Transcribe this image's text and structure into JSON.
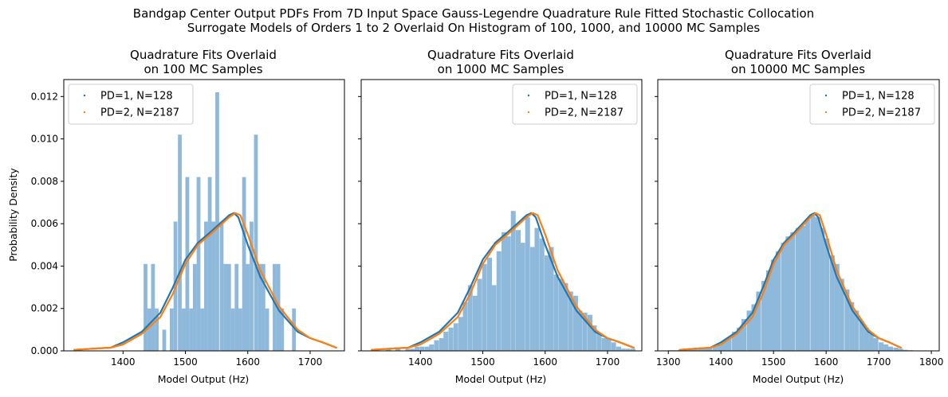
{
  "figure": {
    "suptitle_line1": "Bandgap Center Output PDFs From 7D Input Space Gauss-Legendre Quadrature Rule Fitted Stochastic Collocation",
    "suptitle_line2": "Surrogate Models of Orders 1 to 2 Overlaid On Histogram of 100, 1000, and 10000 MC Samples"
  },
  "chart_data": [
    {
      "type": "histogram+line",
      "title_line1": "Quadrature Fits Overlaid",
      "title_line2": "on 100 MC Samples",
      "xlabel": "Model Output (Hz)",
      "ylabel": "Probability Density",
      "xlim": [
        1305,
        1755
      ],
      "ylim": [
        0,
        0.0128
      ],
      "xticks": [
        1400,
        1500,
        1600,
        1700
      ],
      "yticks": [
        0.0,
        0.002,
        0.004,
        0.006,
        0.008,
        0.01,
        0.012
      ],
      "ytick_labels": [
        "0.000",
        "0.002",
        "0.004",
        "0.006",
        "0.008",
        "0.010",
        "0.012"
      ],
      "show_yticklabels": true,
      "legend_position": "upper-left",
      "histogram": {
        "color": "#8fb9db",
        "bin_width": 6.1,
        "bins": [
          [
            1433,
            0.0041
          ],
          [
            1439,
            0.002
          ],
          [
            1445,
            0.0041
          ],
          [
            1451,
            0.002
          ],
          [
            1463,
            0.001
          ],
          [
            1475,
            0.002
          ],
          [
            1481,
            0.0061
          ],
          [
            1488,
            0.0102
          ],
          [
            1494,
            0.002
          ],
          [
            1500,
            0.0082
          ],
          [
            1506,
            0.002
          ],
          [
            1512,
            0.0041
          ],
          [
            1518,
            0.0082
          ],
          [
            1524,
            0.002
          ],
          [
            1530,
            0.0061
          ],
          [
            1536,
            0.0082
          ],
          [
            1542,
            0.0061
          ],
          [
            1548,
            0.0122
          ],
          [
            1555,
            0.0061
          ],
          [
            1561,
            0.0041
          ],
          [
            1567,
            0.0041
          ],
          [
            1573,
            0.002
          ],
          [
            1579,
            0.0041
          ],
          [
            1585,
            0.002
          ],
          [
            1591,
            0.0082
          ],
          [
            1597,
            0.0041
          ],
          [
            1603,
            0.0061
          ],
          [
            1610,
            0.0102
          ],
          [
            1616,
            0.0041
          ],
          [
            1622,
            0.0041
          ],
          [
            1628,
            0.002
          ],
          [
            1640,
            0.0041
          ],
          [
            1646,
            0.0041
          ],
          [
            1652,
            0.002
          ],
          [
            1671,
            0.002
          ]
        ]
      },
      "series": [
        {
          "name": "PD=1, N=128",
          "color": "#1f77b4",
          "x": [
            1322,
            1350,
            1380,
            1400,
            1430,
            1460,
            1480,
            1500,
            1520,
            1540,
            1555,
            1570,
            1578,
            1585,
            1600,
            1620,
            1650,
            1680,
            1700,
            1720,
            1742
          ],
          "y": [
            5e-05,
            0.0001,
            0.00015,
            0.0004,
            0.0009,
            0.0018,
            0.003,
            0.0043,
            0.0051,
            0.0056,
            0.006,
            0.0064,
            0.0065,
            0.0063,
            0.005,
            0.0035,
            0.0019,
            0.0009,
            0.0006,
            0.0004,
            0.00015
          ]
        },
        {
          "name": "PD=2, N=2187",
          "color": "#ff7f0e",
          "x": [
            1322,
            1350,
            1380,
            1400,
            1430,
            1460,
            1480,
            1500,
            1520,
            1540,
            1555,
            1570,
            1580,
            1588,
            1600,
            1620,
            1650,
            1680,
            1700,
            1720,
            1742
          ],
          "y": [
            5e-05,
            0.0001,
            0.00015,
            0.0003,
            0.0008,
            0.0016,
            0.0027,
            0.0041,
            0.005,
            0.0055,
            0.0059,
            0.0063,
            0.0065,
            0.0064,
            0.0055,
            0.0038,
            0.0021,
            0.001,
            0.0006,
            0.0004,
            0.00015
          ]
        }
      ]
    },
    {
      "type": "histogram+line",
      "title_line1": "Quadrature Fits Overlaid",
      "title_line2": "on 1000 MC Samples",
      "xlabel": "Model Output (Hz)",
      "xlim": [
        1305,
        1755
      ],
      "ylim": [
        0,
        0.0128
      ],
      "xticks": [
        1400,
        1500,
        1600,
        1700
      ],
      "yticks": [
        0.0,
        0.002,
        0.004,
        0.006,
        0.008,
        0.01,
        0.012
      ],
      "show_yticklabels": false,
      "legend_position": "upper-right",
      "histogram": {
        "color": "#8fb9db",
        "bin_width": 7.7,
        "bins": [
          [
            1345,
            0.0001
          ],
          [
            1360,
            0.0001
          ],
          [
            1376,
            0.0001
          ],
          [
            1384,
            0.0001
          ],
          [
            1391,
            0.0002
          ],
          [
            1399,
            0.0002
          ],
          [
            1407,
            0.0002
          ],
          [
            1414,
            0.0003
          ],
          [
            1422,
            0.0005
          ],
          [
            1430,
            0.0006
          ],
          [
            1437,
            0.0009
          ],
          [
            1445,
            0.0011
          ],
          [
            1453,
            0.0013
          ],
          [
            1461,
            0.0016
          ],
          [
            1468,
            0.0023
          ],
          [
            1476,
            0.0031
          ],
          [
            1484,
            0.0026
          ],
          [
            1491,
            0.0034
          ],
          [
            1499,
            0.0041
          ],
          [
            1507,
            0.0044
          ],
          [
            1514,
            0.0031
          ],
          [
            1522,
            0.0047
          ],
          [
            1530,
            0.0056
          ],
          [
            1537,
            0.0054
          ],
          [
            1545,
            0.0066
          ],
          [
            1553,
            0.0057
          ],
          [
            1560,
            0.0051
          ],
          [
            1568,
            0.0063
          ],
          [
            1576,
            0.0049
          ],
          [
            1583,
            0.0058
          ],
          [
            1591,
            0.0053
          ],
          [
            1599,
            0.0045
          ],
          [
            1606,
            0.0049
          ],
          [
            1614,
            0.0036
          ],
          [
            1622,
            0.0034
          ],
          [
            1629,
            0.0032
          ],
          [
            1637,
            0.0028
          ],
          [
            1645,
            0.0026
          ],
          [
            1652,
            0.0019
          ],
          [
            1660,
            0.0018
          ],
          [
            1668,
            0.0017
          ],
          [
            1675,
            0.0012
          ],
          [
            1683,
            0.0008
          ],
          [
            1691,
            0.0006
          ],
          [
            1698,
            0.0006
          ],
          [
            1706,
            0.0004
          ],
          [
            1714,
            0.0002
          ],
          [
            1721,
            0.0001
          ],
          [
            1729,
            0.0001
          ],
          [
            1737,
            0.0001
          ]
        ]
      },
      "series": [
        {
          "name": "PD=1, N=128",
          "color": "#1f77b4",
          "x": [
            1322,
            1350,
            1380,
            1400,
            1430,
            1460,
            1480,
            1500,
            1520,
            1540,
            1555,
            1570,
            1578,
            1585,
            1600,
            1620,
            1650,
            1680,
            1700,
            1720,
            1742
          ],
          "y": [
            5e-05,
            0.0001,
            0.00015,
            0.0004,
            0.0009,
            0.0018,
            0.003,
            0.0043,
            0.0051,
            0.0056,
            0.006,
            0.0064,
            0.0065,
            0.0063,
            0.005,
            0.0035,
            0.0019,
            0.0009,
            0.0006,
            0.0004,
            0.00015
          ]
        },
        {
          "name": "PD=2, N=2187",
          "color": "#ff7f0e",
          "x": [
            1322,
            1350,
            1380,
            1400,
            1430,
            1460,
            1480,
            1500,
            1520,
            1540,
            1555,
            1570,
            1580,
            1588,
            1600,
            1620,
            1650,
            1680,
            1700,
            1720,
            1742
          ],
          "y": [
            5e-05,
            0.0001,
            0.00015,
            0.0003,
            0.0008,
            0.0016,
            0.0027,
            0.0041,
            0.005,
            0.0055,
            0.0059,
            0.0063,
            0.0065,
            0.0064,
            0.0055,
            0.0038,
            0.0021,
            0.001,
            0.0006,
            0.0004,
            0.00015
          ]
        }
      ]
    },
    {
      "type": "histogram+line",
      "title_line1": "Quadrature Fits Overlaid",
      "title_line2": "on 10000 MC Samples",
      "xlabel": "Model Output (Hz)",
      "xlim": [
        1280,
        1815
      ],
      "ylim": [
        0,
        0.0128
      ],
      "xticks": [
        1300,
        1400,
        1500,
        1600,
        1700,
        1800
      ],
      "yticks": [
        0.0,
        0.002,
        0.004,
        0.006,
        0.008,
        0.01,
        0.012
      ],
      "show_yticklabels": false,
      "legend_position": "upper-right",
      "histogram": {
        "color": "#8fb9db",
        "bin_width": 9.3,
        "bins": [
          [
            1300,
            3e-05
          ],
          [
            1309,
            3e-05
          ],
          [
            1318,
            5e-05
          ],
          [
            1328,
            5e-05
          ],
          [
            1337,
            0.0001
          ],
          [
            1346,
            0.0001
          ],
          [
            1356,
            0.0001
          ],
          [
            1365,
            0.00012
          ],
          [
            1374,
            0.00015
          ],
          [
            1384,
            0.0002
          ],
          [
            1393,
            0.0003
          ],
          [
            1402,
            0.0005
          ],
          [
            1411,
            0.0006
          ],
          [
            1421,
            0.0009
          ],
          [
            1430,
            0.0011
          ],
          [
            1439,
            0.0015
          ],
          [
            1449,
            0.0019
          ],
          [
            1458,
            0.0022
          ],
          [
            1467,
            0.0028
          ],
          [
            1477,
            0.0033
          ],
          [
            1486,
            0.0038
          ],
          [
            1495,
            0.0043
          ],
          [
            1504,
            0.0047
          ],
          [
            1514,
            0.0051
          ],
          [
            1523,
            0.0054
          ],
          [
            1532,
            0.0056
          ],
          [
            1542,
            0.0058
          ],
          [
            1551,
            0.0059
          ],
          [
            1560,
            0.0062
          ],
          [
            1570,
            0.0064
          ],
          [
            1579,
            0.0063
          ],
          [
            1588,
            0.0058
          ],
          [
            1597,
            0.0053
          ],
          [
            1607,
            0.0045
          ],
          [
            1616,
            0.0041
          ],
          [
            1625,
            0.0034
          ],
          [
            1635,
            0.0029
          ],
          [
            1644,
            0.0023
          ],
          [
            1653,
            0.0019
          ],
          [
            1663,
            0.0014
          ],
          [
            1672,
            0.0011
          ],
          [
            1681,
            0.0008
          ],
          [
            1690,
            0.0006
          ],
          [
            1700,
            0.0004
          ],
          [
            1709,
            0.0003
          ],
          [
            1718,
            0.0002
          ],
          [
            1728,
            0.00015
          ],
          [
            1737,
            0.0001
          ],
          [
            1746,
            5e-05
          ],
          [
            1756,
            3e-05
          ],
          [
            1765,
            2e-05
          ],
          [
            1784,
            2e-05
          ]
        ]
      },
      "series": [
        {
          "name": "PD=1, N=128",
          "color": "#1f77b4",
          "x": [
            1322,
            1350,
            1380,
            1400,
            1430,
            1460,
            1480,
            1500,
            1520,
            1540,
            1555,
            1570,
            1578,
            1585,
            1600,
            1620,
            1650,
            1680,
            1700,
            1720,
            1742
          ],
          "y": [
            5e-05,
            0.0001,
            0.00015,
            0.0004,
            0.0009,
            0.0018,
            0.003,
            0.0043,
            0.0051,
            0.0056,
            0.006,
            0.0064,
            0.0065,
            0.0063,
            0.005,
            0.0035,
            0.0019,
            0.0009,
            0.0006,
            0.0004,
            0.00015
          ]
        },
        {
          "name": "PD=2, N=2187",
          "color": "#ff7f0e",
          "x": [
            1322,
            1350,
            1380,
            1400,
            1430,
            1460,
            1480,
            1500,
            1520,
            1540,
            1555,
            1570,
            1580,
            1588,
            1600,
            1620,
            1650,
            1680,
            1700,
            1720,
            1742
          ],
          "y": [
            5e-05,
            0.0001,
            0.00015,
            0.0003,
            0.0008,
            0.0016,
            0.0027,
            0.0041,
            0.005,
            0.0055,
            0.0059,
            0.0063,
            0.0065,
            0.0064,
            0.0055,
            0.0038,
            0.0021,
            0.001,
            0.0006,
            0.0004,
            0.00015
          ]
        }
      ]
    }
  ]
}
